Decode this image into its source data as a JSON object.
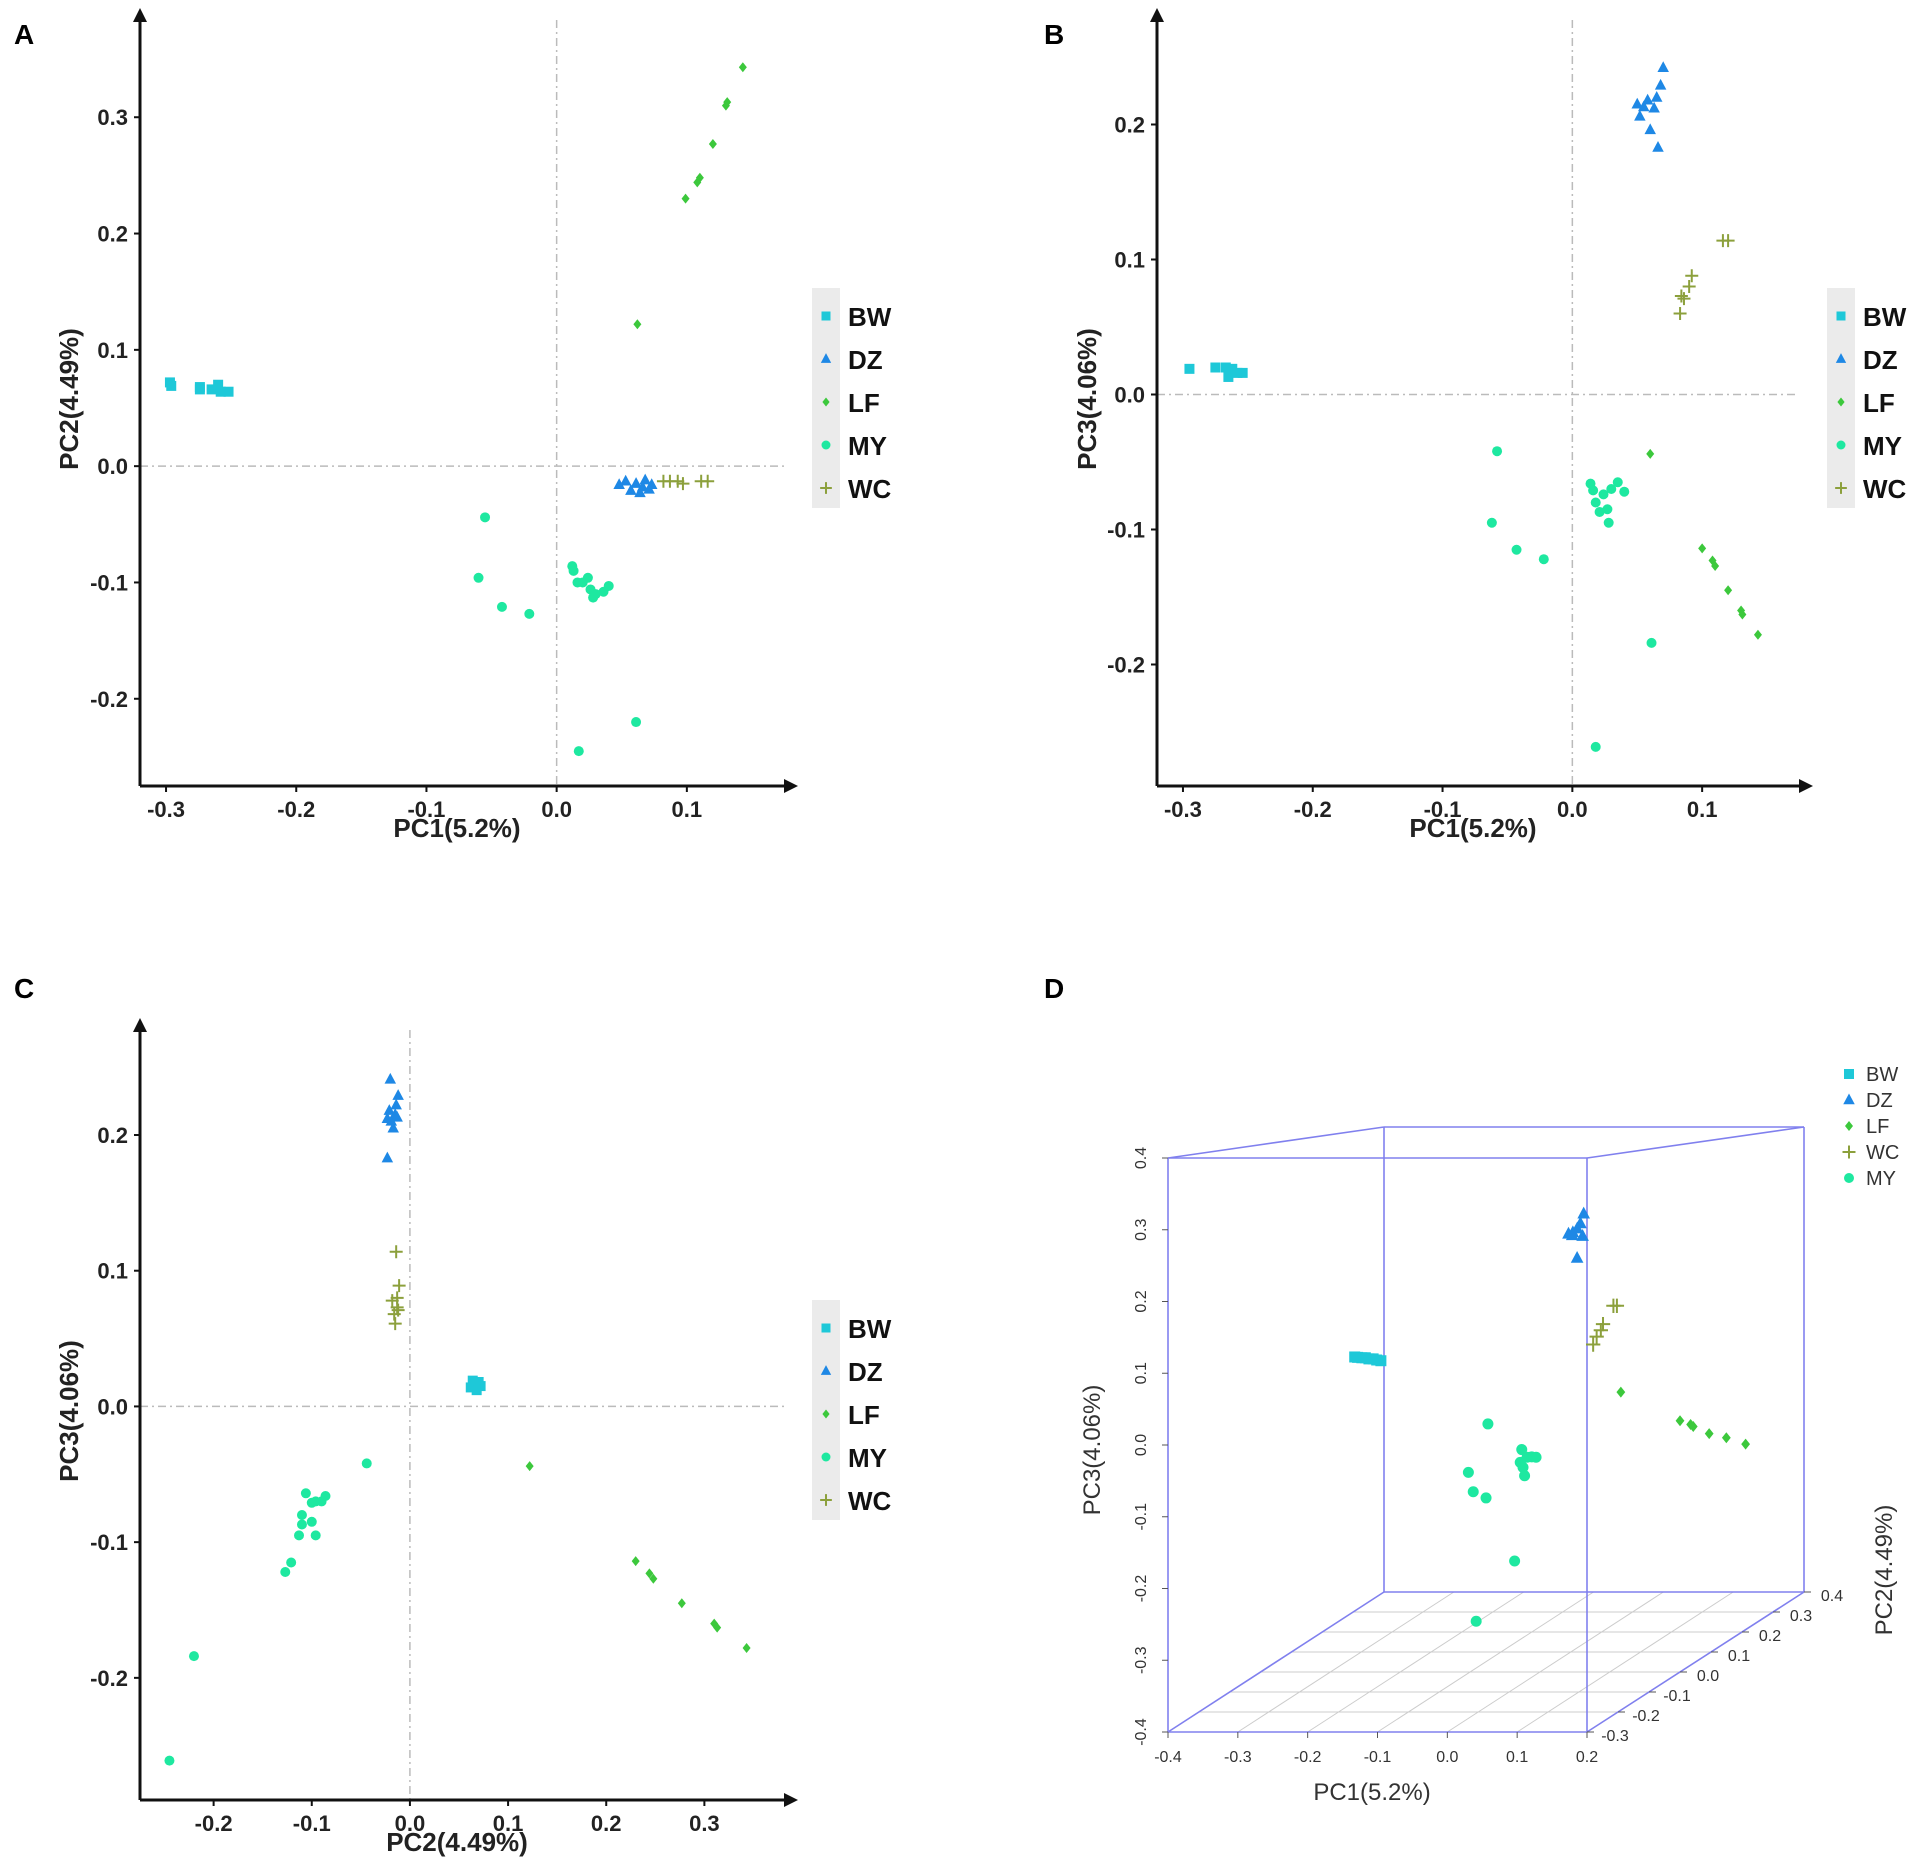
{
  "colors": {
    "BW": "#1ec8d8",
    "DZ": "#1e88e5",
    "LF": "#3cc83c",
    "MY": "#1ee8a0",
    "WC": "#8ca03c",
    "box": "#8080ee",
    "grid": "#cccccc"
  },
  "chart_data": [
    {
      "type": "scatter",
      "panel": "A",
      "xlabel": "PC1(5.2%)",
      "ylabel": "PC2(4.49%)",
      "xlim": [
        -0.32,
        0.17
      ],
      "ylim": [
        -0.275,
        0.375
      ],
      "xticks": [
        -0.3,
        -0.2,
        -0.1,
        0.0,
        0.1
      ],
      "xtick_labels": [
        "-0.3",
        "-0.2",
        "-0.1",
        "0.0",
        "0.1"
      ],
      "yticks": [
        -0.2,
        -0.1,
        0.0,
        0.1,
        0.2,
        0.3
      ],
      "ytick_labels": [
        "-0.2",
        "-0.1",
        "0.0",
        "0.1",
        "0.2",
        "0.3"
      ],
      "legend": [
        "BW",
        "DZ",
        "LF",
        "MY",
        "WC"
      ],
      "series": [
        {
          "name": "BW",
          "marker": "square",
          "points": [
            [
              -0.297,
              0.072
            ],
            [
              -0.296,
              0.069
            ],
            [
              -0.274,
              0.068
            ],
            [
              -0.274,
              0.066
            ],
            [
              -0.265,
              0.066
            ],
            [
              -0.26,
              0.07
            ],
            [
              -0.258,
              0.064
            ],
            [
              -0.252,
              0.064
            ]
          ]
        },
        {
          "name": "DZ",
          "marker": "triangle",
          "points": [
            [
              0.048,
              -0.016
            ],
            [
              0.053,
              -0.013
            ],
            [
              0.057,
              -0.021
            ],
            [
              0.061,
              -0.015
            ],
            [
              0.064,
              -0.023
            ],
            [
              0.066,
              -0.018
            ],
            [
              0.068,
              -0.012
            ],
            [
              0.071,
              -0.02
            ],
            [
              0.073,
              -0.016
            ]
          ]
        },
        {
          "name": "LF",
          "marker": "diamond",
          "points": [
            [
              0.062,
              0.122
            ],
            [
              0.099,
              0.23
            ],
            [
              0.108,
              0.244
            ],
            [
              0.11,
              0.248
            ],
            [
              0.12,
              0.277
            ],
            [
              0.13,
              0.31
            ],
            [
              0.131,
              0.313
            ],
            [
              0.143,
              0.343
            ]
          ]
        },
        {
          "name": "MY",
          "marker": "circle",
          "points": [
            [
              -0.06,
              -0.096
            ],
            [
              -0.055,
              -0.044
            ],
            [
              -0.042,
              -0.121
            ],
            [
              -0.021,
              -0.127
            ],
            [
              0.012,
              -0.086
            ],
            [
              0.013,
              -0.09
            ],
            [
              0.016,
              -0.1
            ],
            [
              0.02,
              -0.1
            ],
            [
              0.024,
              -0.096
            ],
            [
              0.026,
              -0.106
            ],
            [
              0.028,
              -0.113
            ],
            [
              0.03,
              -0.11
            ],
            [
              0.036,
              -0.108
            ],
            [
              0.04,
              -0.103
            ],
            [
              0.017,
              -0.245
            ],
            [
              0.061,
              -0.22
            ]
          ]
        },
        {
          "name": "WC",
          "marker": "plus",
          "points": [
            [
              0.082,
              -0.013
            ],
            [
              0.087,
              -0.013
            ],
            [
              0.093,
              -0.013
            ],
            [
              0.097,
              -0.015
            ],
            [
              0.111,
              -0.013
            ],
            [
              0.116,
              -0.013
            ]
          ]
        }
      ]
    },
    {
      "type": "scatter",
      "panel": "B",
      "xlabel": "PC1(5.2%)",
      "ylabel": "PC3(4.06%)",
      "xlim": [
        -0.32,
        0.17
      ],
      "ylim": [
        -0.29,
        0.27
      ],
      "xticks": [
        -0.3,
        -0.2,
        -0.1,
        0.0,
        0.1
      ],
      "xtick_labels": [
        "-0.3",
        "-0.2",
        "-0.1",
        "0.0",
        "0.1"
      ],
      "yticks": [
        -0.2,
        -0.1,
        0.0,
        0.1,
        0.2
      ],
      "ytick_labels": [
        "-0.2",
        "-0.1",
        "0.0",
        "0.1",
        "0.2"
      ],
      "legend": [
        "BW",
        "DZ",
        "LF",
        "MY",
        "WC"
      ],
      "series": [
        {
          "name": "BW",
          "marker": "square",
          "points": [
            [
              -0.295,
              0.019
            ],
            [
              -0.275,
              0.02
            ],
            [
              -0.267,
              0.02
            ],
            [
              -0.265,
              0.013
            ],
            [
              -0.262,
              0.019
            ],
            [
              -0.258,
              0.016
            ],
            [
              -0.254,
              0.016
            ]
          ]
        },
        {
          "name": "DZ",
          "marker": "triangle",
          "points": [
            [
              0.05,
              0.215
            ],
            [
              0.052,
              0.206
            ],
            [
              0.055,
              0.213
            ],
            [
              0.058,
              0.218
            ],
            [
              0.06,
              0.196
            ],
            [
              0.063,
              0.212
            ],
            [
              0.065,
              0.22
            ],
            [
              0.066,
              0.183
            ],
            [
              0.068,
              0.229
            ],
            [
              0.07,
              0.242
            ]
          ]
        },
        {
          "name": "LF",
          "marker": "diamond",
          "points": [
            [
              0.06,
              -0.044
            ],
            [
              0.1,
              -0.114
            ],
            [
              0.108,
              -0.123
            ],
            [
              0.11,
              -0.127
            ],
            [
              0.12,
              -0.145
            ],
            [
              0.13,
              -0.16
            ],
            [
              0.131,
              -0.163
            ],
            [
              0.143,
              -0.178
            ]
          ]
        },
        {
          "name": "MY",
          "marker": "circle",
          "points": [
            [
              -0.058,
              -0.042
            ],
            [
              -0.062,
              -0.095
            ],
            [
              -0.043,
              -0.115
            ],
            [
              -0.022,
              -0.122
            ],
            [
              0.014,
              -0.066
            ],
            [
              0.016,
              -0.071
            ],
            [
              0.018,
              -0.08
            ],
            [
              0.021,
              -0.087
            ],
            [
              0.024,
              -0.074
            ],
            [
              0.027,
              -0.085
            ],
            [
              0.028,
              -0.095
            ],
            [
              0.03,
              -0.07
            ],
            [
              0.035,
              -0.065
            ],
            [
              0.04,
              -0.072
            ],
            [
              0.061,
              -0.184
            ],
            [
              0.018,
              -0.261
            ]
          ]
        },
        {
          "name": "WC",
          "marker": "plus",
          "points": [
            [
              0.083,
              0.06
            ],
            [
              0.084,
              0.073
            ],
            [
              0.086,
              0.071
            ],
            [
              0.09,
              0.08
            ],
            [
              0.092,
              0.088
            ],
            [
              0.116,
              0.114
            ],
            [
              0.12,
              0.114
            ]
          ]
        }
      ]
    },
    {
      "type": "scatter",
      "panel": "C",
      "xlabel": "PC2(4.49%)",
      "ylabel": "PC3(4.06%)",
      "xlim": [
        -0.275,
        0.375
      ],
      "ylim": [
        -0.29,
        0.27
      ],
      "xticks": [
        -0.2,
        -0.1,
        0.0,
        0.1,
        0.2,
        0.3
      ],
      "xtick_labels": [
        "-0.2",
        "-0.1",
        "0.0",
        "0.1",
        "0.2",
        "0.3"
      ],
      "yticks": [
        -0.2,
        -0.1,
        0.0,
        0.1,
        0.2
      ],
      "ytick_labels": [
        "-0.2",
        "-0.1",
        "0.0",
        "0.1",
        "0.2"
      ],
      "legend": [
        "BW",
        "DZ",
        "LF",
        "MY",
        "WC"
      ],
      "series": [
        {
          "name": "BW",
          "marker": "square",
          "points": [
            [
              0.062,
              0.014
            ],
            [
              0.064,
              0.019
            ],
            [
              0.066,
              0.016
            ],
            [
              0.068,
              0.012
            ],
            [
              0.07,
              0.018
            ],
            [
              0.072,
              0.015
            ]
          ]
        },
        {
          "name": "DZ",
          "marker": "triangle",
          "points": [
            [
              -0.023,
              0.183
            ],
            [
              -0.023,
              0.212
            ],
            [
              -0.021,
              0.218
            ],
            [
              -0.02,
              0.241
            ],
            [
              -0.019,
              0.21
            ],
            [
              -0.017,
              0.205
            ],
            [
              -0.015,
              0.215
            ],
            [
              -0.014,
              0.222
            ],
            [
              -0.013,
              0.213
            ],
            [
              -0.012,
              0.229
            ]
          ]
        },
        {
          "name": "LF",
          "marker": "diamond",
          "points": [
            [
              0.122,
              -0.044
            ],
            [
              0.23,
              -0.114
            ],
            [
              0.244,
              -0.123
            ],
            [
              0.248,
              -0.127
            ],
            [
              0.277,
              -0.145
            ],
            [
              0.31,
              -0.16
            ],
            [
              0.313,
              -0.163
            ],
            [
              0.343,
              -0.178
            ]
          ]
        },
        {
          "name": "MY",
          "marker": "circle",
          "points": [
            [
              -0.245,
              -0.261
            ],
            [
              -0.22,
              -0.184
            ],
            [
              -0.127,
              -0.122
            ],
            [
              -0.121,
              -0.115
            ],
            [
              -0.113,
              -0.095
            ],
            [
              -0.11,
              -0.087
            ],
            [
              -0.11,
              -0.08
            ],
            [
              -0.106,
              -0.064
            ],
            [
              -0.1,
              -0.071
            ],
            [
              -0.1,
              -0.085
            ],
            [
              -0.096,
              -0.095
            ],
            [
              -0.096,
              -0.07
            ],
            [
              -0.09,
              -0.07
            ],
            [
              -0.086,
              -0.066
            ],
            [
              -0.044,
              -0.042
            ]
          ]
        },
        {
          "name": "WC",
          "marker": "plus",
          "points": [
            [
              -0.018,
              0.078
            ],
            [
              -0.016,
              0.068
            ],
            [
              -0.015,
              0.061
            ],
            [
              -0.014,
              0.114
            ],
            [
              -0.013,
              0.073
            ],
            [
              -0.013,
              0.08
            ],
            [
              -0.012,
              0.071
            ],
            [
              -0.011,
              0.089
            ]
          ]
        }
      ]
    },
    {
      "type": "scatter3d",
      "panel": "D",
      "xlabel": "PC1(5.2%)",
      "ylabel": "PC2(4.49%)",
      "zlabel": "PC3(4.06%)",
      "xlim": [
        -0.4,
        0.2
      ],
      "ylim": [
        -0.3,
        0.4
      ],
      "zlim": [
        -0.4,
        0.4
      ],
      "xtick_labels": [
        "-0.4",
        "-0.3",
        "-0.2",
        "-0.1",
        "0.0",
        "0.1",
        "0.2"
      ],
      "ytick_labels": [
        "-0.3",
        "-0.2",
        "-0.1",
        "0.0",
        "0.1",
        "0.2",
        "0.3",
        "0.4"
      ],
      "ztick_labels": [
        "-0.4",
        "-0.3",
        "-0.2",
        "-0.1",
        "0.0",
        "0.1",
        "0.2",
        "0.3",
        "0.4"
      ],
      "legend": [
        "BW",
        "DZ",
        "LF",
        "WC",
        "MY"
      ],
      "series": [
        {
          "name": "BW",
          "marker": "square",
          "points": [
            [
              -0.297,
              0.072,
              0.019
            ],
            [
              -0.292,
              0.07,
              0.019
            ],
            [
              -0.285,
              0.068,
              0.019
            ],
            [
              -0.28,
              0.068,
              0.019
            ],
            [
              -0.274,
              0.066,
              0.018
            ],
            [
              -0.268,
              0.066,
              0.018
            ],
            [
              -0.262,
              0.064,
              0.017
            ],
            [
              -0.256,
              0.064,
              0.016
            ]
          ]
        },
        {
          "name": "DZ",
          "marker": "triangle",
          "points": [
            [
              0.048,
              -0.016,
              0.215
            ],
            [
              0.052,
              -0.013,
              0.212
            ],
            [
              0.056,
              -0.02,
              0.218
            ],
            [
              0.06,
              -0.015,
              0.222
            ],
            [
              0.063,
              -0.022,
              0.183
            ],
            [
              0.066,
              -0.018,
              0.23
            ],
            [
              0.068,
              -0.012,
              0.242
            ],
            [
              0.07,
              -0.02,
              0.213
            ]
          ]
        },
        {
          "name": "LF",
          "marker": "diamond",
          "points": [
            [
              0.062,
              0.122,
              -0.044
            ],
            [
              0.099,
              0.23,
              -0.114
            ],
            [
              0.108,
              0.244,
              -0.123
            ],
            [
              0.11,
              0.248,
              -0.127
            ],
            [
              0.12,
              0.277,
              -0.145
            ],
            [
              0.13,
              0.31,
              -0.16
            ],
            [
              0.143,
              0.343,
              -0.178
            ]
          ]
        },
        {
          "name": "WC",
          "marker": "plus",
          "points": [
            [
              0.082,
              -0.013,
              0.06
            ],
            [
              0.087,
              -0.013,
              0.071
            ],
            [
              0.093,
              -0.013,
              0.08
            ],
            [
              0.097,
              -0.015,
              0.089
            ],
            [
              0.111,
              -0.013,
              0.114
            ],
            [
              0.116,
              -0.013,
              0.114
            ]
          ]
        },
        {
          "name": "MY",
          "marker": "circle",
          "points": [
            [
              -0.06,
              -0.096,
              -0.095
            ],
            [
              -0.055,
              -0.044,
              -0.042
            ],
            [
              -0.042,
              -0.121,
              -0.115
            ],
            [
              -0.021,
              -0.127,
              -0.122
            ],
            [
              0.012,
              -0.086,
              -0.066
            ],
            [
              0.016,
              -0.1,
              -0.08
            ],
            [
              0.02,
              -0.1,
              -0.087
            ],
            [
              0.024,
              -0.096,
              -0.074
            ],
            [
              0.028,
              -0.113,
              -0.095
            ],
            [
              0.036,
              -0.108,
              -0.07
            ],
            [
              0.04,
              -0.103,
              -0.072
            ],
            [
              0.017,
              -0.245,
              -0.261
            ],
            [
              0.061,
              -0.22,
              -0.184
            ]
          ]
        }
      ]
    }
  ]
}
